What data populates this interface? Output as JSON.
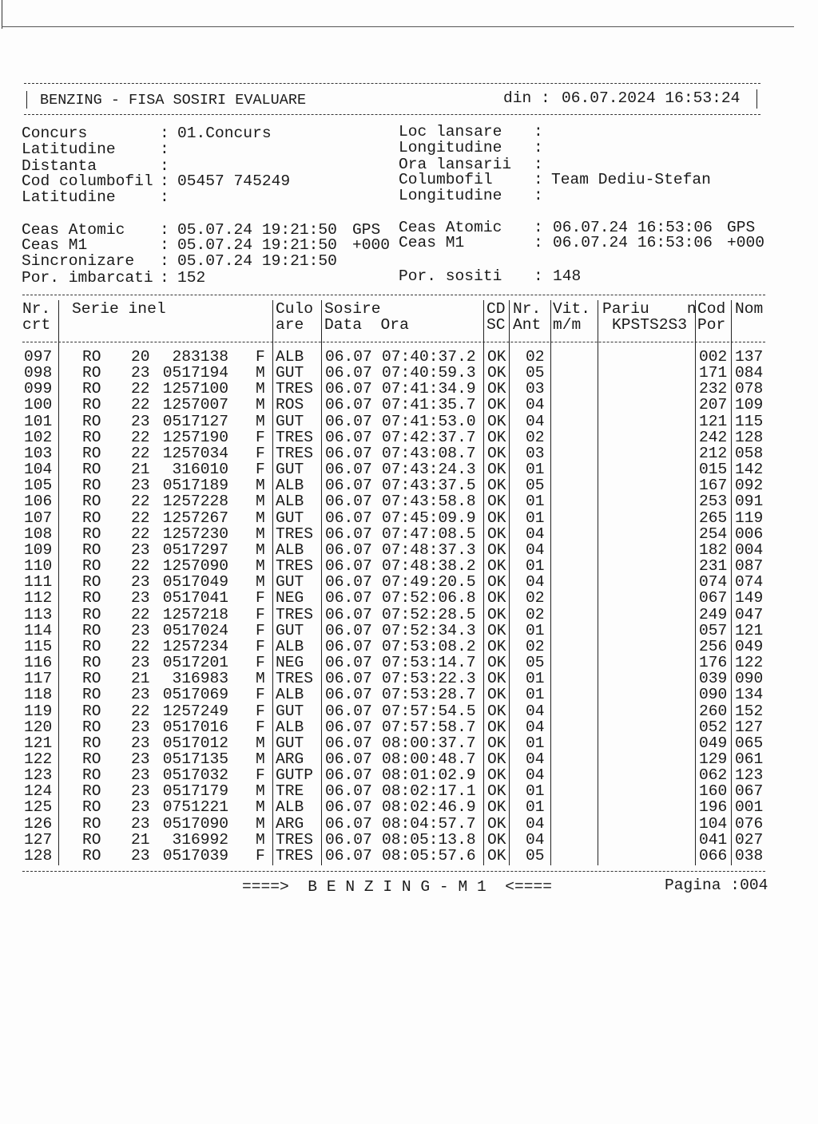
{
  "header": {
    "title": "BENZING - FISA SOSIRI EVALUARE",
    "date_label": "din :",
    "date_value": "06.07.2024 16:53:24"
  },
  "info_left": [
    {
      "label": "Concurs",
      "value": "01.Concurs"
    },
    {
      "label": "Latitudine",
      "value": ""
    },
    {
      "label": "Distanta",
      "value": ""
    },
    {
      "label": "Cod columbofil",
      "value": "05457 745249"
    },
    {
      "label": "Latitudine",
      "value": ""
    }
  ],
  "info_right": [
    {
      "label": "Loc lansare",
      "value": ""
    },
    {
      "label": "Longitudine",
      "value": ""
    },
    {
      "label": "Ora lansarii",
      "value": ""
    },
    {
      "label": "Columbofil",
      "value": "Team Dediu-Stefan"
    },
    {
      "label": "Longitudine",
      "value": ""
    }
  ],
  "clocks_left": [
    {
      "label": "Ceas Atomic",
      "value": "05.07.24 19:21:50",
      "suffix": "GPS"
    },
    {
      "label": "Ceas M1",
      "value": "05.07.24 19:21:50",
      "suffix": "+000"
    },
    {
      "label": "Sincronizare",
      "value": "05.07.24 19:21:50",
      "suffix": ""
    },
    {
      "label": "Por. imbarcati",
      "value": "152",
      "suffix": ""
    }
  ],
  "clocks_right": [
    {
      "label": "Ceas Atomic",
      "value": "06.07.24 16:53:06",
      "suffix": "GPS"
    },
    {
      "label": "Ceas M1",
      "value": "06.07.24 16:53:06",
      "suffix": "+000"
    },
    {
      "label": "Por. sositi",
      "value": "148",
      "suffix": ""
    }
  ],
  "table": {
    "headers": {
      "nr": [
        "Nr.",
        "crt"
      ],
      "serie": [
        "Serie inel",
        ""
      ],
      "culoare": [
        "Culo",
        "are"
      ],
      "sosire": [
        "Sosire",
        "Data  Ora"
      ],
      "cdsc": [
        "CD",
        "SC"
      ],
      "nrant": [
        "Nr.",
        "Ant"
      ],
      "vit": [
        "Vit.",
        "m/m"
      ],
      "pariu": [
        "Pariu    n",
        "KPSTS2S3"
      ],
      "codpor": [
        "Cod",
        "Por"
      ],
      "nom": [
        "Nom",
        ""
      ]
    },
    "rows": [
      [
        "097",
        "RO",
        "20",
        "283138",
        "F",
        "ALB",
        "06.07",
        "07:40:37.2",
        "OK",
        "02",
        "002",
        "137"
      ],
      [
        "098",
        "RO",
        "23",
        "0517194",
        "M",
        "GUT",
        "06.07",
        "07:40:59.3",
        "OK",
        "05",
        "171",
        "084"
      ],
      [
        "099",
        "RO",
        "22",
        "1257100",
        "M",
        "TRES",
        "06.07",
        "07:41:34.9",
        "OK",
        "03",
        "232",
        "078"
      ],
      [
        "100",
        "RO",
        "22",
        "1257007",
        "M",
        "ROS",
        "06.07",
        "07:41:35.7",
        "OK",
        "04",
        "207",
        "109"
      ],
      [
        "101",
        "RO",
        "23",
        "0517127",
        "M",
        "GUT",
        "06.07",
        "07:41:53.0",
        "OK",
        "04",
        "121",
        "115"
      ],
      [
        "102",
        "RO",
        "22",
        "1257190",
        "F",
        "TRES",
        "06.07",
        "07:42:37.7",
        "OK",
        "02",
        "242",
        "128"
      ],
      [
        "103",
        "RO",
        "22",
        "1257034",
        "F",
        "TRES",
        "06.07",
        "07:43:08.7",
        "OK",
        "03",
        "212",
        "058"
      ],
      [
        "104",
        "RO",
        "21",
        "316010",
        "F",
        "GUT",
        "06.07",
        "07:43:24.3",
        "OK",
        "01",
        "015",
        "142"
      ],
      [
        "105",
        "RO",
        "23",
        "0517189",
        "M",
        "ALB",
        "06.07",
        "07:43:37.5",
        "OK",
        "05",
        "167",
        "092"
      ],
      [
        "106",
        "RO",
        "22",
        "1257228",
        "M",
        "ALB",
        "06.07",
        "07:43:58.8",
        "OK",
        "01",
        "253",
        "091"
      ],
      [
        "107",
        "RO",
        "22",
        "1257267",
        "M",
        "GUT",
        "06.07",
        "07:45:09.9",
        "OK",
        "01",
        "265",
        "119"
      ],
      [
        "108",
        "RO",
        "22",
        "1257230",
        "M",
        "TRES",
        "06.07",
        "07:47:08.5",
        "OK",
        "04",
        "254",
        "006"
      ],
      [
        "109",
        "RO",
        "23",
        "0517297",
        "M",
        "ALB",
        "06.07",
        "07:48:37.3",
        "OK",
        "04",
        "182",
        "004"
      ],
      [
        "110",
        "RO",
        "22",
        "1257090",
        "M",
        "TRES",
        "06.07",
        "07:48:38.2",
        "OK",
        "01",
        "231",
        "087"
      ],
      [
        "111",
        "RO",
        "23",
        "0517049",
        "M",
        "GUT",
        "06.07",
        "07:49:20.5",
        "OK",
        "04",
        "074",
        "074"
      ],
      [
        "112",
        "RO",
        "23",
        "0517041",
        "F",
        "NEG",
        "06.07",
        "07:52:06.8",
        "OK",
        "02",
        "067",
        "149"
      ],
      [
        "113",
        "RO",
        "22",
        "1257218",
        "F",
        "TRES",
        "06.07",
        "07:52:28.5",
        "OK",
        "02",
        "249",
        "047"
      ],
      [
        "114",
        "RO",
        "23",
        "0517024",
        "F",
        "GUT",
        "06.07",
        "07:52:34.3",
        "OK",
        "01",
        "057",
        "121"
      ],
      [
        "115",
        "RO",
        "22",
        "1257234",
        "F",
        "ALB",
        "06.07",
        "07:53:08.2",
        "OK",
        "02",
        "256",
        "049"
      ],
      [
        "116",
        "RO",
        "23",
        "0517201",
        "F",
        "NEG",
        "06.07",
        "07:53:14.7",
        "OK",
        "05",
        "176",
        "122"
      ],
      [
        "117",
        "RO",
        "21",
        "316983",
        "M",
        "TRES",
        "06.07",
        "07:53:22.3",
        "OK",
        "01",
        "039",
        "090"
      ],
      [
        "118",
        "RO",
        "23",
        "0517069",
        "F",
        "ALB",
        "06.07",
        "07:53:28.7",
        "OK",
        "01",
        "090",
        "134"
      ],
      [
        "119",
        "RO",
        "22",
        "1257249",
        "F",
        "GUT",
        "06.07",
        "07:57:54.5",
        "OK",
        "04",
        "260",
        "152"
      ],
      [
        "120",
        "RO",
        "23",
        "0517016",
        "F",
        "ALB",
        "06.07",
        "07:57:58.7",
        "OK",
        "04",
        "052",
        "127"
      ],
      [
        "121",
        "RO",
        "23",
        "0517012",
        "M",
        "GUT",
        "06.07",
        "08:00:37.7",
        "OK",
        "01",
        "049",
        "065"
      ],
      [
        "122",
        "RO",
        "23",
        "0517135",
        "M",
        "ARG",
        "06.07",
        "08:00:48.7",
        "OK",
        "04",
        "129",
        "061"
      ],
      [
        "123",
        "RO",
        "23",
        "0517032",
        "F",
        "GUTP",
        "06.07",
        "08:01:02.9",
        "OK",
        "04",
        "062",
        "123"
      ],
      [
        "124",
        "RO",
        "23",
        "0517179",
        "M",
        "TRE",
        "06.07",
        "08:02:17.1",
        "OK",
        "01",
        "160",
        "067"
      ],
      [
        "125",
        "RO",
        "23",
        "0751221",
        "M",
        "ALB",
        "06.07",
        "08:02:46.9",
        "OK",
        "01",
        "196",
        "001"
      ],
      [
        "126",
        "RO",
        "23",
        "0517090",
        "M",
        "ARG",
        "06.07",
        "08:04:57.7",
        "OK",
        "04",
        "104",
        "076"
      ],
      [
        "127",
        "RO",
        "21",
        "316992",
        "M",
        "TRES",
        "06.07",
        "08:05:13.8",
        "OK",
        "04",
        "041",
        "027"
      ],
      [
        "128",
        "RO",
        "23",
        "0517039",
        "F",
        "TRES",
        "06.07",
        "08:05:57.6",
        "OK",
        "05",
        "066",
        "038"
      ]
    ]
  },
  "footer": {
    "banner": "====>  B E N Z I N G - M 1  <====",
    "page": "Pagina :004"
  }
}
